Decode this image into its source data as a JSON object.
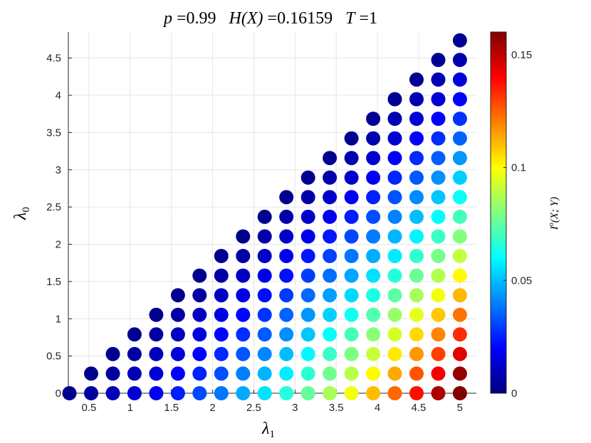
{
  "chart_data": {
    "type": "scatter",
    "title_parts": {
      "p_label": "p",
      "p_value": "0.99",
      "h_label": "H(X)",
      "h_value": "0.16159",
      "t_label": "T",
      "t_value": "1"
    },
    "xlabel": "λ1",
    "ylabel": "λ0",
    "colorbar_label": "I°(X;Y)",
    "xlim": [
      0.25,
      5.2
    ],
    "ylim": [
      0,
      4.85
    ],
    "xticks": [
      "0.5",
      "1",
      "1.5",
      "2",
      "2.5",
      "3",
      "3.5",
      "4",
      "4.5",
      "5"
    ],
    "yticks": [
      "0",
      "0.5",
      "1",
      "1.5",
      "2",
      "2.5",
      "3",
      "3.5",
      "4",
      "4.5"
    ],
    "colorbar_ticks": [
      "0",
      "0.05",
      "0.1",
      "0.15"
    ],
    "colorbar_range": [
      0,
      0.16
    ],
    "colormap": "jet",
    "grid": true,
    "grid_step": 0.2632,
    "x_start": 0.2632,
    "x_end": 5.0,
    "note": "points on triangular grid with lambda0 <= lambda1 - 0.2632; color = I°(X;Y)"
  }
}
